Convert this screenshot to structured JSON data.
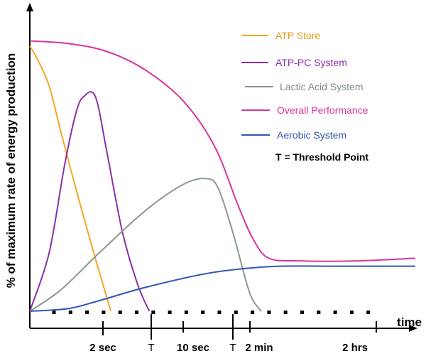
{
  "chart_data": {
    "type": "line",
    "title": "",
    "ylabel": "% of maximum rate of energy production",
    "xlabel": "time",
    "x_ticks": [
      "2 sec",
      "10 sec",
      "2 min",
      "2 hrs"
    ],
    "threshold_ticks": [
      "T",
      "T"
    ],
    "threshold_note": "T = Threshold Point",
    "x_range": [
      0,
      100
    ],
    "ylim": [
      0,
      100
    ],
    "grid": false,
    "legend_position": "top-right",
    "series": [
      {
        "name": "ATP Store",
        "color": "#f5a623",
        "points": [
          [
            0,
            100
          ],
          [
            2,
            95
          ],
          [
            5,
            85
          ],
          [
            8,
            68
          ],
          [
            12,
            46
          ],
          [
            16,
            25
          ],
          [
            19,
            10
          ],
          [
            21,
            0
          ]
        ]
      },
      {
        "name": "ATP-PC System",
        "color": "#8b2fa8",
        "points": [
          [
            0,
            0
          ],
          [
            5,
            22
          ],
          [
            9,
            55
          ],
          [
            12,
            75
          ],
          [
            14,
            81
          ],
          [
            17,
            81
          ],
          [
            20,
            60
          ],
          [
            24,
            30
          ],
          [
            28,
            10
          ],
          [
            31,
            0
          ]
        ]
      },
      {
        "name": "Lactic Acid System",
        "color": "#8a9a8a",
        "points": [
          [
            0,
            0
          ],
          [
            8,
            8
          ],
          [
            18,
            22
          ],
          [
            30,
            38
          ],
          [
            40,
            48
          ],
          [
            46,
            50
          ],
          [
            49,
            46
          ],
          [
            53,
            28
          ],
          [
            57,
            7
          ],
          [
            60,
            0
          ]
        ]
      },
      {
        "name": "Overall Performance",
        "color": "#d9359a",
        "points": [
          [
            0,
            102
          ],
          [
            10,
            101
          ],
          [
            20,
            98
          ],
          [
            30,
            91
          ],
          [
            40,
            79
          ],
          [
            48,
            62
          ],
          [
            54,
            40
          ],
          [
            58,
            27
          ],
          [
            62,
            20
          ],
          [
            70,
            19
          ],
          [
            85,
            19
          ],
          [
            100,
            20
          ]
        ]
      },
      {
        "name": "Aerobic System",
        "color": "#2f55b5",
        "points": [
          [
            0,
            0
          ],
          [
            10,
            1
          ],
          [
            18,
            4
          ],
          [
            30,
            9
          ],
          [
            45,
            14
          ],
          [
            55,
            16
          ],
          [
            65,
            17
          ],
          [
            80,
            17
          ],
          [
            100,
            17
          ]
        ]
      }
    ]
  }
}
